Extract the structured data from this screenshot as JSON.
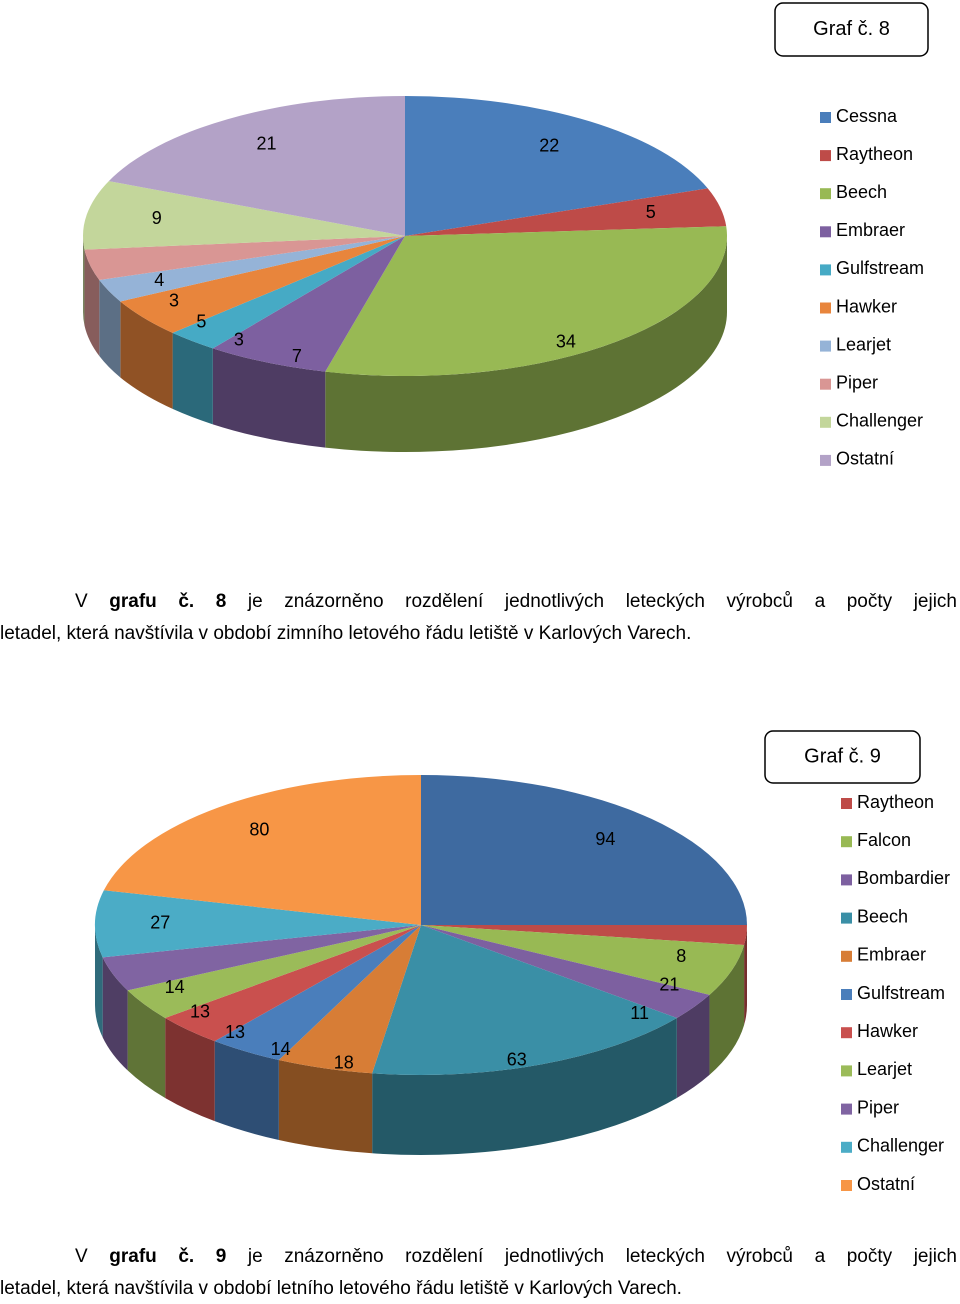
{
  "chart_data": [
    {
      "type": "pie3d",
      "title": "Graf č. 8",
      "categories": [
        "Cessna",
        "Raytheon",
        "Beech",
        "Embraer",
        "Gulfstream",
        "Hawker",
        "Learjet",
        "Piper",
        "Challenger",
        "Ostatní"
      ],
      "values": [
        22,
        5,
        34,
        7,
        3,
        5,
        3,
        4,
        9,
        21
      ],
      "colors": [
        "#4a7ebb",
        "#be4b48",
        "#98b954",
        "#7d60a0",
        "#46aac5",
        "#e8853c",
        "#95b3d7",
        "#d99694",
        "#c3d69b",
        "#b3a2c7"
      ],
      "legend": "right"
    },
    {
      "type": "pie3d",
      "title": "Graf č. 9",
      "categories": [
        null,
        "Raytheon",
        "Falcon",
        "Bombardier",
        "Beech",
        "Embraer",
        "Gulfstream",
        "Hawker",
        "Learjet",
        "Piper",
        "Challenger",
        "Ostatní"
      ],
      "values": [
        94,
        8,
        21,
        11,
        63,
        18,
        14,
        13,
        13,
        14,
        27,
        80
      ],
      "colors": [
        "#3e6aa0",
        "#be4b48",
        "#98b954",
        "#7d60a0",
        "#3a8fa6",
        "#d77d36",
        "#4a7ebb",
        "#c9504e",
        "#9bbb59",
        "#8064a2",
        "#4bacc6",
        "#f79646"
      ],
      "legend": "right"
    }
  ],
  "captions": [
    {
      "prefix": "V ",
      "bold": "grafu č. 8",
      "rest": " je znázorněno rozdělení jednotlivých leteckých výrobců a počty jejich",
      "line2": "letadel, která navštívila v období zimního letového řádu letiště v Karlových Varech."
    },
    {
      "prefix": "V ",
      "bold": "grafu č. 9",
      "rest": " je znázorněno rozdělení jednotlivých leteckých výrobců a počty jejich",
      "line2": "letadel, která navštívila v období letního letového řádu letiště v Karlových Varech."
    }
  ]
}
